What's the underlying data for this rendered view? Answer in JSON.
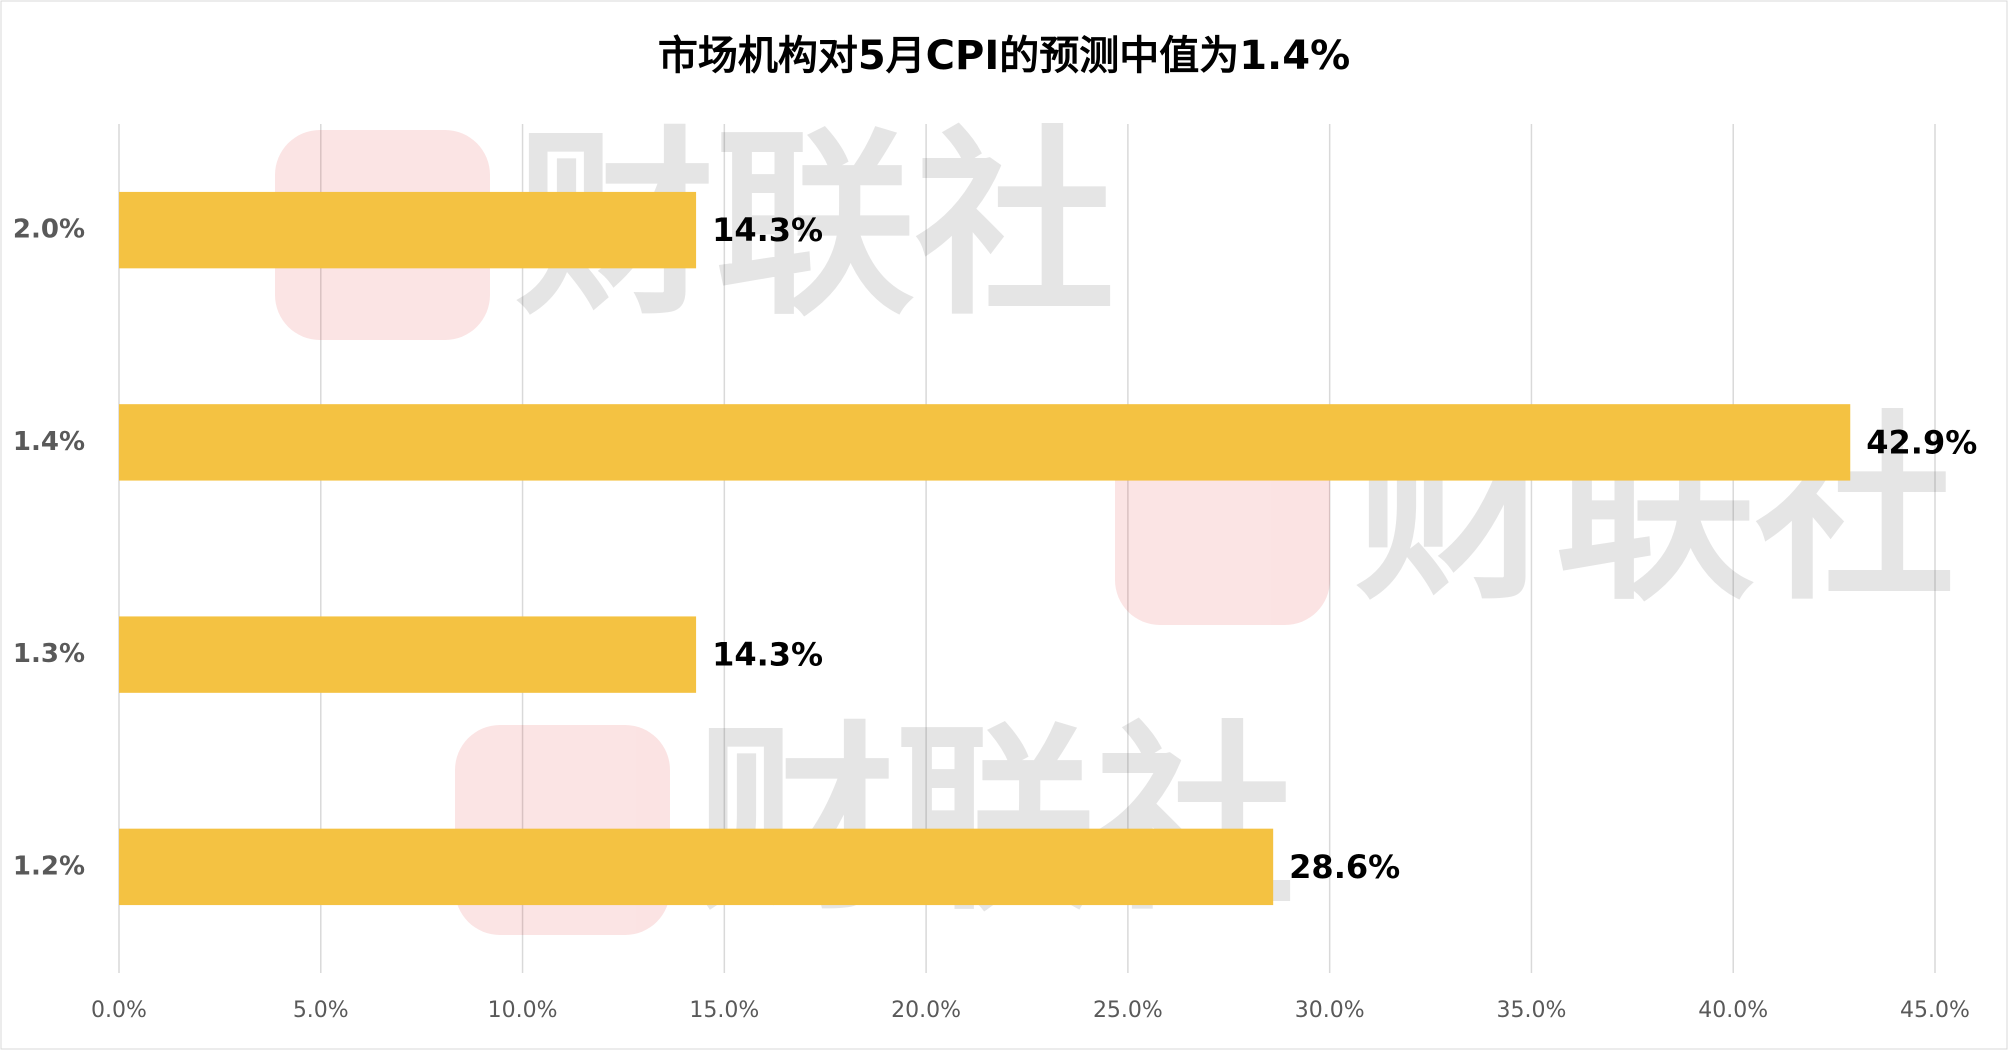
{
  "chart_data": {
    "type": "hbar",
    "title": "市场机构对5月CPI的预测中值为1.4%",
    "categories": [
      "2.0%",
      "1.4%",
      "1.3%",
      "1.2%"
    ],
    "values": [
      14.3,
      42.9,
      14.3,
      28.6
    ],
    "value_labels": [
      "14.3%",
      "42.9%",
      "14.3%",
      "28.6%"
    ],
    "color": "#f4c242",
    "xlim": [
      0,
      45
    ],
    "xticks": [
      {
        "value": 0,
        "label": "0.0%"
      },
      {
        "value": 5,
        "label": "5.0%"
      },
      {
        "value": 10,
        "label": "10.0%"
      },
      {
        "value": 15,
        "label": "15.0%"
      },
      {
        "value": 20,
        "label": "20.0%"
      },
      {
        "value": 25,
        "label": "25.0%"
      },
      {
        "value": 30,
        "label": "30.0%"
      },
      {
        "value": 35,
        "label": "35.0%"
      },
      {
        "value": 40,
        "label": "40.0%"
      },
      {
        "value": 45,
        "label": "45.0%"
      }
    ],
    "grid": true,
    "watermark": "财联社"
  }
}
